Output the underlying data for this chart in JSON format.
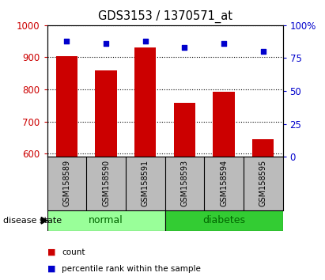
{
  "title": "GDS3153 / 1370571_at",
  "samples": [
    "GSM158589",
    "GSM158590",
    "GSM158591",
    "GSM158593",
    "GSM158594",
    "GSM158595"
  ],
  "counts": [
    903,
    860,
    930,
    757,
    793,
    645
  ],
  "percentiles": [
    88,
    86,
    88,
    83,
    86,
    80
  ],
  "groups": [
    "normal",
    "normal",
    "normal",
    "diabetes",
    "diabetes",
    "diabetes"
  ],
  "ylim_left": [
    590,
    1000
  ],
  "ylim_right": [
    0,
    100
  ],
  "yticks_left": [
    600,
    700,
    800,
    900,
    1000
  ],
  "yticks_right": [
    0,
    25,
    50,
    75,
    100
  ],
  "bar_color": "#cc0000",
  "dot_color": "#0000cc",
  "normal_color": "#99ff99",
  "diabetes_color": "#33cc33",
  "group_label_color": "#006600",
  "tick_color_left": "#cc0000",
  "tick_color_right": "#0000cc",
  "grid_color": "black",
  "bg_color": "#bbbbbb",
  "plot_bg": "#ffffff",
  "bar_width": 0.55,
  "disease_state_label": "disease state"
}
